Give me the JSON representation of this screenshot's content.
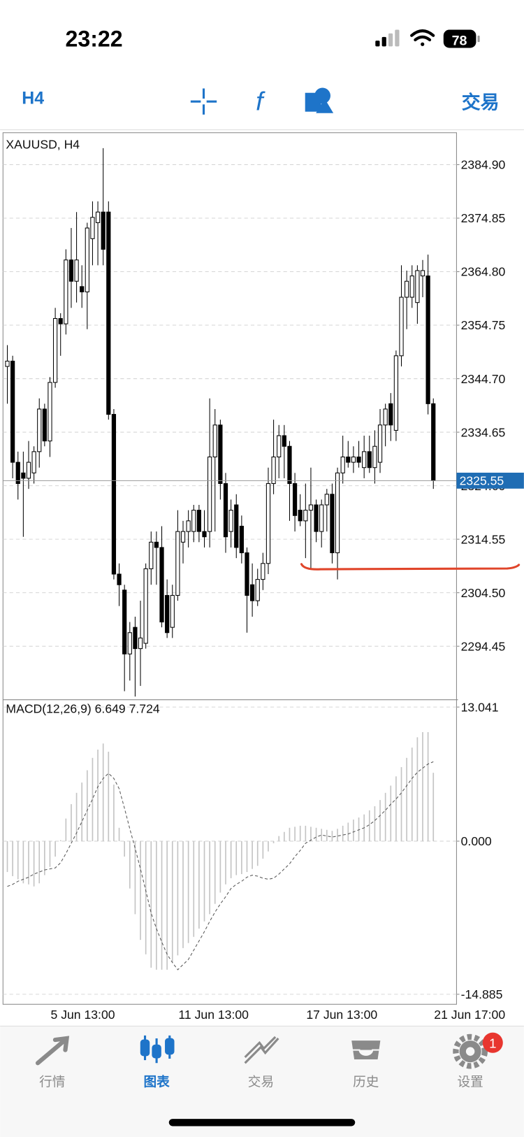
{
  "status_bar": {
    "time": "23:22",
    "battery": "78"
  },
  "toolbar": {
    "timeframe": "H4",
    "trade": "交易"
  },
  "chart_data": [
    {
      "type": "candlestick",
      "title": "XAUUSD, H4",
      "categories": [
        null,
        null,
        null,
        null,
        null,
        null,
        null,
        null,
        "5 Jun 13:00",
        null,
        null,
        null,
        null,
        null,
        null,
        null,
        null,
        null,
        null,
        null,
        null,
        null,
        null,
        null,
        null,
        null,
        null,
        null,
        null,
        null,
        null,
        null,
        "11 Jun 13:00",
        null,
        null,
        null,
        null,
        null,
        null,
        null,
        null,
        null,
        null,
        null,
        null,
        null,
        null,
        null,
        null,
        null,
        null,
        null,
        null,
        null,
        null,
        null,
        "17 Jun 13:00",
        null,
        null,
        null,
        null,
        null,
        null,
        null,
        null,
        null,
        null,
        null,
        null,
        null,
        null,
        null,
        null,
        null,
        null,
        null,
        null,
        null,
        null,
        null,
        "21 Jun 17:00"
      ],
      "open": [
        2347,
        2348,
        2329,
        2327,
        2326,
        2327,
        2331,
        2339,
        2333,
        2344,
        2356,
        2355,
        2367,
        2363,
        2362,
        2361,
        2371,
        2374,
        2376,
        2376,
        2338,
        2308,
        2305,
        2293,
        2298,
        2294,
        2295,
        2309,
        2314,
        2313,
        2304,
        2298,
        2304,
        2314,
        2316,
        2316,
        2320,
        2316,
        2316,
        2330,
        2336,
        2325,
        2316,
        2321,
        2317,
        2312,
        2306,
        2303,
        2307,
        2310,
        2325,
        2330,
        2334,
        2332,
        2325,
        2320,
        2318,
        2320,
        2321,
        2316,
        2321,
        2323,
        2312,
        2327,
        2330,
        2329,
        2330,
        2328,
        2331,
        2328,
        2329,
        2336,
        2340,
        2335,
        2349,
        2360,
        2360,
        2359,
        2364,
        2364,
        2340
      ],
      "high": [
        2351,
        2349,
        2331,
        2331,
        2333,
        2332,
        2341,
        2340,
        2345,
        2358,
        2357,
        2369,
        2373,
        2376,
        2366,
        2374,
        2378,
        2378,
        2388,
        2378,
        2339,
        2310,
        2306,
        2299,
        2300,
        2303,
        2310,
        2316,
        2316,
        2317,
        2307,
        2306,
        2320,
        2318,
        2320,
        2321,
        2321,
        2320,
        2341,
        2339,
        2337,
        2327,
        2322,
        2323,
        2319,
        2313,
        2310,
        2309,
        2312,
        2328,
        2337,
        2336,
        2336,
        2333,
        2327,
        2323,
        2325,
        2328,
        2322,
        2322,
        2324,
        2325,
        2328,
        2334,
        2333,
        2332,
        2333,
        2334,
        2334,
        2335,
        2339,
        2340,
        2342,
        2350,
        2366,
        2365,
        2366,
        2366,
        2367,
        2368,
        2341
      ],
      "low": [
        2340,
        2326,
        2322,
        2315,
        2324,
        2325,
        2328,
        2332,
        2330,
        2343,
        2349,
        2353,
        2358,
        2359,
        2358,
        2354,
        2366,
        2366,
        2366,
        2337,
        2307,
        2302,
        2286,
        2288,
        2285,
        2287,
        2294,
        2306,
        2306,
        2298,
        2296,
        2296,
        2303,
        2310,
        2313,
        2314,
        2314,
        2313,
        2313,
        2316,
        2322,
        2312,
        2313,
        2311,
        2310,
        2297,
        2300,
        2302,
        2305,
        2308,
        2323,
        2326,
        2326,
        2318,
        2316,
        2317,
        2311,
        2309,
        2314,
        2313,
        2316,
        2310,
        2307,
        2325,
        2328,
        2327,
        2328,
        2326,
        2327,
        2325,
        2327,
        2332,
        2333,
        2333,
        2347,
        2354,
        2358,
        2355,
        2360,
        2338,
        2324
      ],
      "close": [
        2348,
        2329,
        2325,
        2326,
        2329,
        2331,
        2339,
        2333,
        2344,
        2356,
        2355,
        2367,
        2363,
        2367,
        2361,
        2373,
        2375,
        2376,
        2369,
        2338,
        2308,
        2306,
        2293,
        2297,
        2294,
        2296,
        2309,
        2314,
        2313,
        2299,
        2297,
        2304,
        2316,
        2316,
        2318,
        2320,
        2316,
        2315,
        2330,
        2336,
        2325,
        2315,
        2320,
        2313,
        2312,
        2304,
        2303,
        2307,
        2310,
        2325,
        2330,
        2334,
        2332,
        2325,
        2319,
        2318,
        2320,
        2321,
        2316,
        2321,
        2323,
        2312,
        2327,
        2330,
        2329,
        2330,
        2329,
        2331,
        2328,
        2332,
        2336,
        2339,
        2336,
        2349,
        2360,
        2363,
        2364,
        2365,
        2365,
        2340,
        2325.55
      ],
      "last_price": 2325.55,
      "ylim": [
        2284.4,
        2390.9
      ],
      "yticks": [
        {
          "value": 2384.9,
          "label": "2384.90"
        },
        2374.85,
        {
          "value": 2364.8,
          "label": "2364.80"
        },
        2354.75,
        {
          "value": 2344.7,
          "label": "2344.70"
        },
        2334.65,
        {
          "value": 2324.6,
          "label": "2324.60"
        },
        2314.55,
        {
          "value": 2304.5,
          "label": "2304.50"
        },
        2294.45
      ],
      "grid": true,
      "up_color": "#ffffff",
      "down_color": "#000000",
      "last_price_color": "#1f6db4"
    },
    {
      "type": "macd",
      "title": "MACD(12,26,9) 6.649 7.724",
      "series": [
        {
          "color": "#c4c4c4",
          "values": [
            -3.0,
            -3.4,
            -3.7,
            -4.1,
            -4.2,
            -4.4,
            -4.1,
            -3.3,
            -2.5,
            -1.5,
            0.1,
            2.2,
            3.6,
            4.7,
            5.7,
            6.9,
            8.1,
            8.9,
            9.5,
            8.7,
            5.5,
            1.3,
            -1.5,
            -4.6,
            -7.1,
            -9.6,
            -11.0,
            -12.3,
            -12.5,
            -12.5,
            -12.5,
            -11.8,
            -11.1,
            -10.4,
            -9.9,
            -9.3,
            -8.5,
            -7.8,
            -7.1,
            -6.1,
            -5.0,
            -4.2,
            -3.6,
            -3.3,
            -3.2,
            -3.0,
            -2.7,
            -2.4,
            -1.7,
            -1.0,
            -0.2,
            0.5,
            0.9,
            1.3,
            1.4,
            1.5,
            1.5,
            1.4,
            1.3,
            1.2,
            1.1,
            1.0,
            1.2,
            1.5,
            1.8,
            2.1,
            2.3,
            2.6,
            3.0,
            3.4,
            4.0,
            4.7,
            5.4,
            6.3,
            7.2,
            8.1,
            9.1,
            10.1,
            10.6,
            10.6,
            6.649
          ]
        },
        {
          "color": "#555555",
          "values": [
            -4.4,
            -4.2,
            -3.9,
            -3.7,
            -3.5,
            -3.2,
            -3.0,
            -2.8,
            -2.7,
            -2.6,
            -2.1,
            -1.2,
            -0.2,
            0.8,
            1.9,
            3.0,
            4.1,
            5.3,
            6.1,
            6.6,
            6.1,
            5.1,
            3.2,
            1.2,
            -0.7,
            -2.7,
            -4.8,
            -7.0,
            -8.5,
            -9.8,
            -11.0,
            -11.8,
            -12.5,
            -12.0,
            -11.5,
            -10.6,
            -9.7,
            -8.8,
            -7.8,
            -6.9,
            -6.1,
            -5.4,
            -4.6,
            -4.2,
            -3.9,
            -3.5,
            -3.3,
            -3.4,
            -3.6,
            -3.7,
            -3.6,
            -3.2,
            -2.7,
            -2.2,
            -1.5,
            -0.9,
            -0.2,
            0.1,
            0.4,
            0.6,
            0.5,
            0.4,
            0.5,
            0.6,
            0.7,
            0.9,
            1.1,
            1.3,
            1.6,
            2.0,
            2.5,
            3.0,
            3.6,
            4.1,
            4.7,
            5.4,
            6.1,
            6.7,
            7.1,
            7.5,
            7.724
          ]
        }
      ],
      "ylim": [
        -15.86,
        13.75
      ],
      "yticks": [
        13.041,
        {
          "value": 0,
          "label": "0.000"
        },
        -14.885
      ],
      "grid": true
    }
  ],
  "tab_bar": {
    "tabs": [
      {
        "label": "行情"
      },
      {
        "label": "图表"
      },
      {
        "label": "交易"
      },
      {
        "label": "历史"
      },
      {
        "label": "设置"
      }
    ],
    "active": 1,
    "badge": 1
  }
}
